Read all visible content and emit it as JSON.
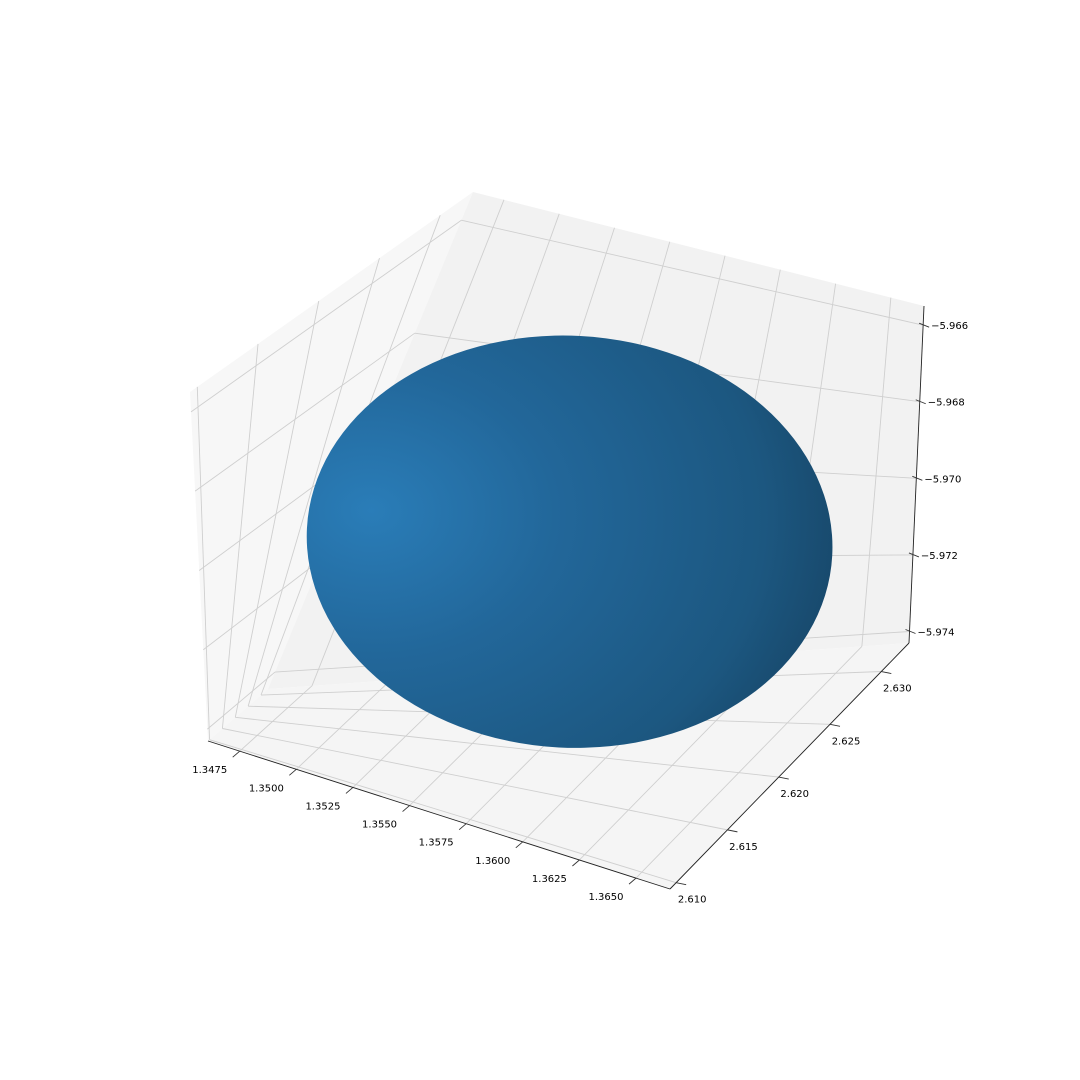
{
  "chart_data": {
    "type": "surface3d",
    "title": "",
    "xlabel": "",
    "ylabel": "",
    "zlabel": "",
    "series": [
      {
        "kind": "ellipsoid",
        "color": "#2a7bb4",
        "center": {
          "x": 1.3563,
          "y": 2.6215,
          "z": -5.9705
        },
        "x_range": [
          1.3461,
          1.3665
        ],
        "y_range": [
          2.6128,
          2.6302
        ],
        "z_range": [
          -5.9738,
          -5.9672
        ]
      }
    ],
    "axes": {
      "x": {
        "ticks": [
          1.3475,
          1.35,
          1.3525,
          1.355,
          1.3575,
          1.36,
          1.3625,
          1.365
        ],
        "tick_labels": [
          "1.3475",
          "1.3500",
          "1.3525",
          "1.3550",
          "1.3575",
          "1.3600",
          "1.3625",
          "1.3650"
        ]
      },
      "y": {
        "ticks": [
          2.61,
          2.615,
          2.62,
          2.625,
          2.63
        ],
        "tick_labels": [
          "2.610",
          "2.615",
          "2.620",
          "2.625",
          "2.630"
        ]
      },
      "z": {
        "ticks": [
          -5.966,
          -5.968,
          -5.97,
          -5.972,
          -5.974
        ],
        "tick_labels": [
          "−5.966",
          "−5.968",
          "−5.970",
          "−5.972",
          "−5.974"
        ]
      }
    },
    "grid": true,
    "pane_colors": {
      "back": "#f2f2f2",
      "side": "#f7f7f7",
      "floor": "#f5f5f5"
    }
  }
}
